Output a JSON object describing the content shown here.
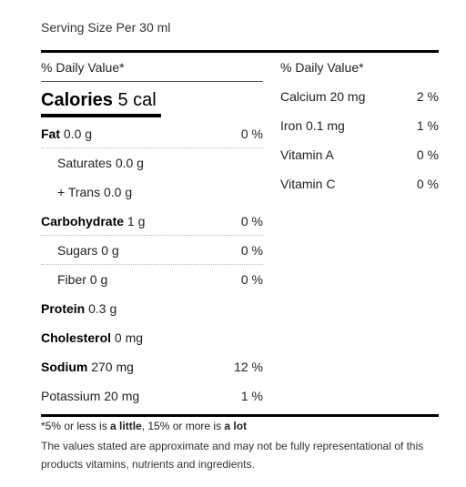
{
  "serving": "Serving Size Per 30 ml",
  "left_header": "% Daily Value*",
  "right_header": "% Daily Value*",
  "calories": {
    "label": "Calories",
    "value": "5 cal"
  },
  "left_rows": [
    {
      "bold": "Fat",
      "rest": " 0.0 g",
      "pct": "0 %"
    },
    {
      "bold": "",
      "rest": "Saturates 0.0 g",
      "pct": ""
    },
    {
      "bold": "",
      "rest": "+ Trans 0.0 g",
      "pct": ""
    },
    {
      "bold": "Carbohydrate",
      "rest": " 1 g",
      "pct": "0 %"
    },
    {
      "bold": "",
      "rest": "Sugars 0 g",
      "pct": "0 %"
    },
    {
      "bold": "",
      "rest": "Fiber 0 g",
      "pct": "0 %"
    },
    {
      "bold": "Protein",
      "rest": " 0.3 g",
      "pct": ""
    },
    {
      "bold": "Cholesterol",
      "rest": " 0 mg",
      "pct": ""
    },
    {
      "bold": "Sodium",
      "rest": " 270 mg",
      "pct": "12 %"
    },
    {
      "bold": "",
      "rest": "Potassium 20 mg",
      "pct": "1 %"
    }
  ],
  "right_rows": [
    {
      "name": "Calcium 20 mg",
      "pct": "2 %"
    },
    {
      "name": "Iron 0.1 mg",
      "pct": "1 %"
    },
    {
      "name": "Vitamin A",
      "pct": "0 %"
    },
    {
      "name": "Vitamin C",
      "pct": "0 %"
    }
  ],
  "footnote": {
    "prefix": "*5% or less is ",
    "little": "a little",
    "middle": ", 15% or more is ",
    "lot": "a lot"
  },
  "disclaimer": "The values stated are approximate and may not be fully representational of this products vitamins, nutrients and ingredients."
}
